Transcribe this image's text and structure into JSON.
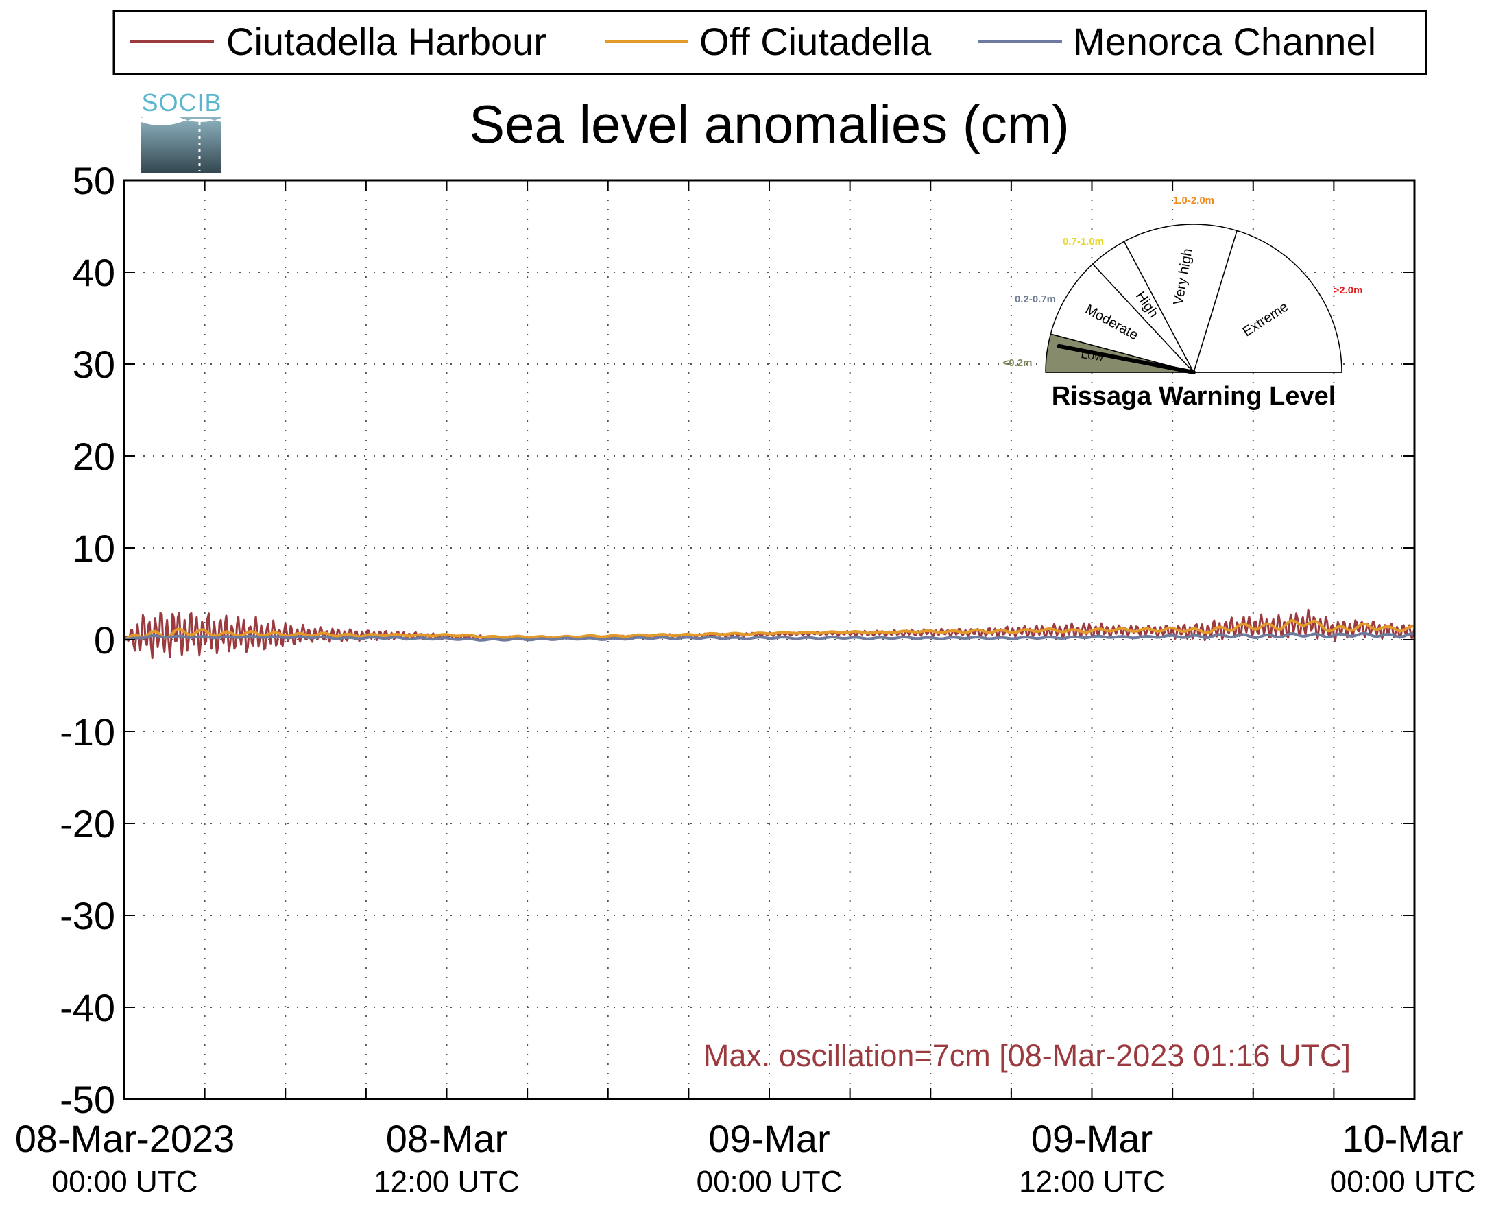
{
  "legend": {
    "placement": "top",
    "entries": [
      {
        "name": "Ciutadella Harbour",
        "color": "#9b3a3f"
      },
      {
        "name": "Off Ciutadella",
        "color": "#e39a2b"
      },
      {
        "name": "Menorca Channel",
        "color": "#6e7a9e"
      }
    ]
  },
  "logo": {
    "text": "SOCIB"
  },
  "gauge": {
    "title": "Rissaga Warning Level",
    "current_level": "Low",
    "sectors": [
      {
        "label": "Low",
        "range": "<0.2m",
        "range_color": "#7d8a5a",
        "active": true
      },
      {
        "label": "Moderate",
        "range": "0.2-0.7m",
        "range_color": "#6e7a90",
        "active": false
      },
      {
        "label": "High",
        "range": "0.7-1.0m",
        "range_color": "#e8d62b",
        "active": false
      },
      {
        "label": "Very high",
        "range": "1.0-2.0m",
        "range_color": "#ef8a1e",
        "active": false
      },
      {
        "label": "Extreme",
        "range": ">2.0m",
        "range_color": "#e01b1b",
        "active": false
      }
    ],
    "active_fill": "#858b6b"
  },
  "chart_data": {
    "type": "line",
    "title": "Sea level anomalies (cm)",
    "xlabel": "",
    "ylabel": "",
    "ylim": [
      -50,
      50
    ],
    "yticks": [
      50,
      40,
      30,
      20,
      10,
      0,
      -10,
      -20,
      -30,
      -40,
      -50
    ],
    "x_unit": "hours since 08-Mar-2023 00:00 UTC",
    "xlim": [
      0,
      48
    ],
    "x_minor_step_hours": 3,
    "grid": true,
    "xtick_labels": [
      {
        "hour": 0,
        "line1": "08-Mar-2023",
        "line2": "00:00 UTC"
      },
      {
        "hour": 12,
        "line1": "08-Mar",
        "line2": "12:00 UTC"
      },
      {
        "hour": 24,
        "line1": "09-Mar",
        "line2": "00:00 UTC"
      },
      {
        "hour": 36,
        "line1": "09-Mar",
        "line2": "12:00 UTC"
      },
      {
        "hour": 48,
        "line1": "10-Mar",
        "line2": "00:00 UTC"
      }
    ],
    "annotation": {
      "text": "Max. oscillation=7cm [08-Mar-2023 01:16 UTC]",
      "color": "#9b3a3f"
    },
    "series": [
      {
        "name": "Ciutadella Harbour",
        "color": "#9b3a3f",
        "style": "oscillating",
        "x": [
          0,
          0.5,
          1,
          1.5,
          2,
          2.5,
          3,
          4,
          5,
          6,
          7,
          8,
          9,
          10,
          11,
          12,
          14,
          16,
          18,
          20,
          22,
          24,
          26,
          28,
          30,
          32,
          33,
          34,
          35,
          36,
          37,
          38,
          39,
          40,
          41,
          42,
          43,
          44,
          45,
          46,
          47,
          48
        ],
        "center": [
          0,
          0.5,
          0.6,
          0.7,
          0.8,
          0.8,
          0.7,
          0.6,
          0.5,
          0.5,
          0.6,
          0.5,
          0.5,
          0.5,
          0.4,
          0.3,
          0.2,
          0.2,
          0.3,
          0.4,
          0.5,
          0.6,
          0.7,
          0.7,
          0.8,
          0.8,
          0.9,
          0.9,
          1.0,
          1.0,
          1.0,
          1.0,
          0.9,
          0.9,
          1.2,
          1.5,
          1.3,
          1.8,
          1.0,
          1.3,
          1.0,
          0.9
        ],
        "amplitude": [
          0,
          2.2,
          2.6,
          2.8,
          2.8,
          2.6,
          2.4,
          2.2,
          2.0,
          1.4,
          0.9,
          0.8,
          0.6,
          0.5,
          0.4,
          0.3,
          0.2,
          0.1,
          0.1,
          0.2,
          0.2,
          0.2,
          0.2,
          0.3,
          0.4,
          0.5,
          0.6,
          0.7,
          0.8,
          0.9,
          0.6,
          0.6,
          0.8,
          1.0,
          1.2,
          1.3,
          1.4,
          1.6,
          1.2,
          1.0,
          0.9,
          0.8
        ]
      },
      {
        "name": "Off Ciutadella",
        "color": "#e39a2b",
        "style": "smooth",
        "x": [
          0,
          0.5,
          1,
          2,
          3,
          4,
          5,
          6,
          8,
          10,
          12,
          14,
          16,
          18,
          20,
          22,
          24,
          26,
          28,
          30,
          32,
          34,
          36,
          38,
          40,
          41,
          42,
          43,
          44,
          45,
          46,
          47,
          48
        ],
        "center": [
          0,
          0.5,
          0.6,
          0.8,
          0.7,
          0.7,
          0.6,
          0.6,
          0.5,
          0.5,
          0.5,
          0.3,
          0.3,
          0.4,
          0.5,
          0.6,
          0.7,
          0.8,
          0.8,
          0.9,
          0.9,
          1.0,
          1.0,
          1.1,
          1.0,
          1.2,
          1.4,
          1.6,
          1.8,
          1.2,
          1.4,
          1.2,
          1.3
        ],
        "amplitude": [
          0,
          0.3,
          0.5,
          0.5,
          0.4,
          0.3,
          0.3,
          0.2,
          0.2,
          0.1,
          0.1,
          0.1,
          0.1,
          0.1,
          0.1,
          0.1,
          0.1,
          0.1,
          0.1,
          0.1,
          0.2,
          0.2,
          0.2,
          0.2,
          0.3,
          0.4,
          0.4,
          0.5,
          0.5,
          0.4,
          0.4,
          0.3,
          0.3
        ]
      },
      {
        "name": "Menorca Channel",
        "color": "#6e7a9e",
        "style": "smooth",
        "x": [
          0,
          1,
          2,
          4,
          6,
          8,
          10,
          12,
          14,
          16,
          18,
          20,
          22,
          24,
          26,
          28,
          30,
          32,
          34,
          36,
          38,
          40,
          42,
          44,
          46,
          48
        ],
        "center": [
          0,
          0.4,
          0.3,
          0.3,
          0.3,
          0.2,
          0.2,
          0.1,
          0.0,
          0.1,
          0.1,
          0.2,
          0.2,
          0.2,
          0.2,
          0.2,
          0.2,
          0.2,
          0.2,
          0.3,
          0.3,
          0.4,
          0.4,
          0.5,
          0.5,
          0.5
        ],
        "amplitude": [
          0,
          0.1,
          0.1,
          0.1,
          0.1,
          0.1,
          0.1,
          0.1,
          0.1,
          0.1,
          0.1,
          0.1,
          0.1,
          0.1,
          0.1,
          0.1,
          0.1,
          0.1,
          0.1,
          0.1,
          0.1,
          0.2,
          0.2,
          0.2,
          0.2,
          0.2
        ]
      }
    ]
  }
}
